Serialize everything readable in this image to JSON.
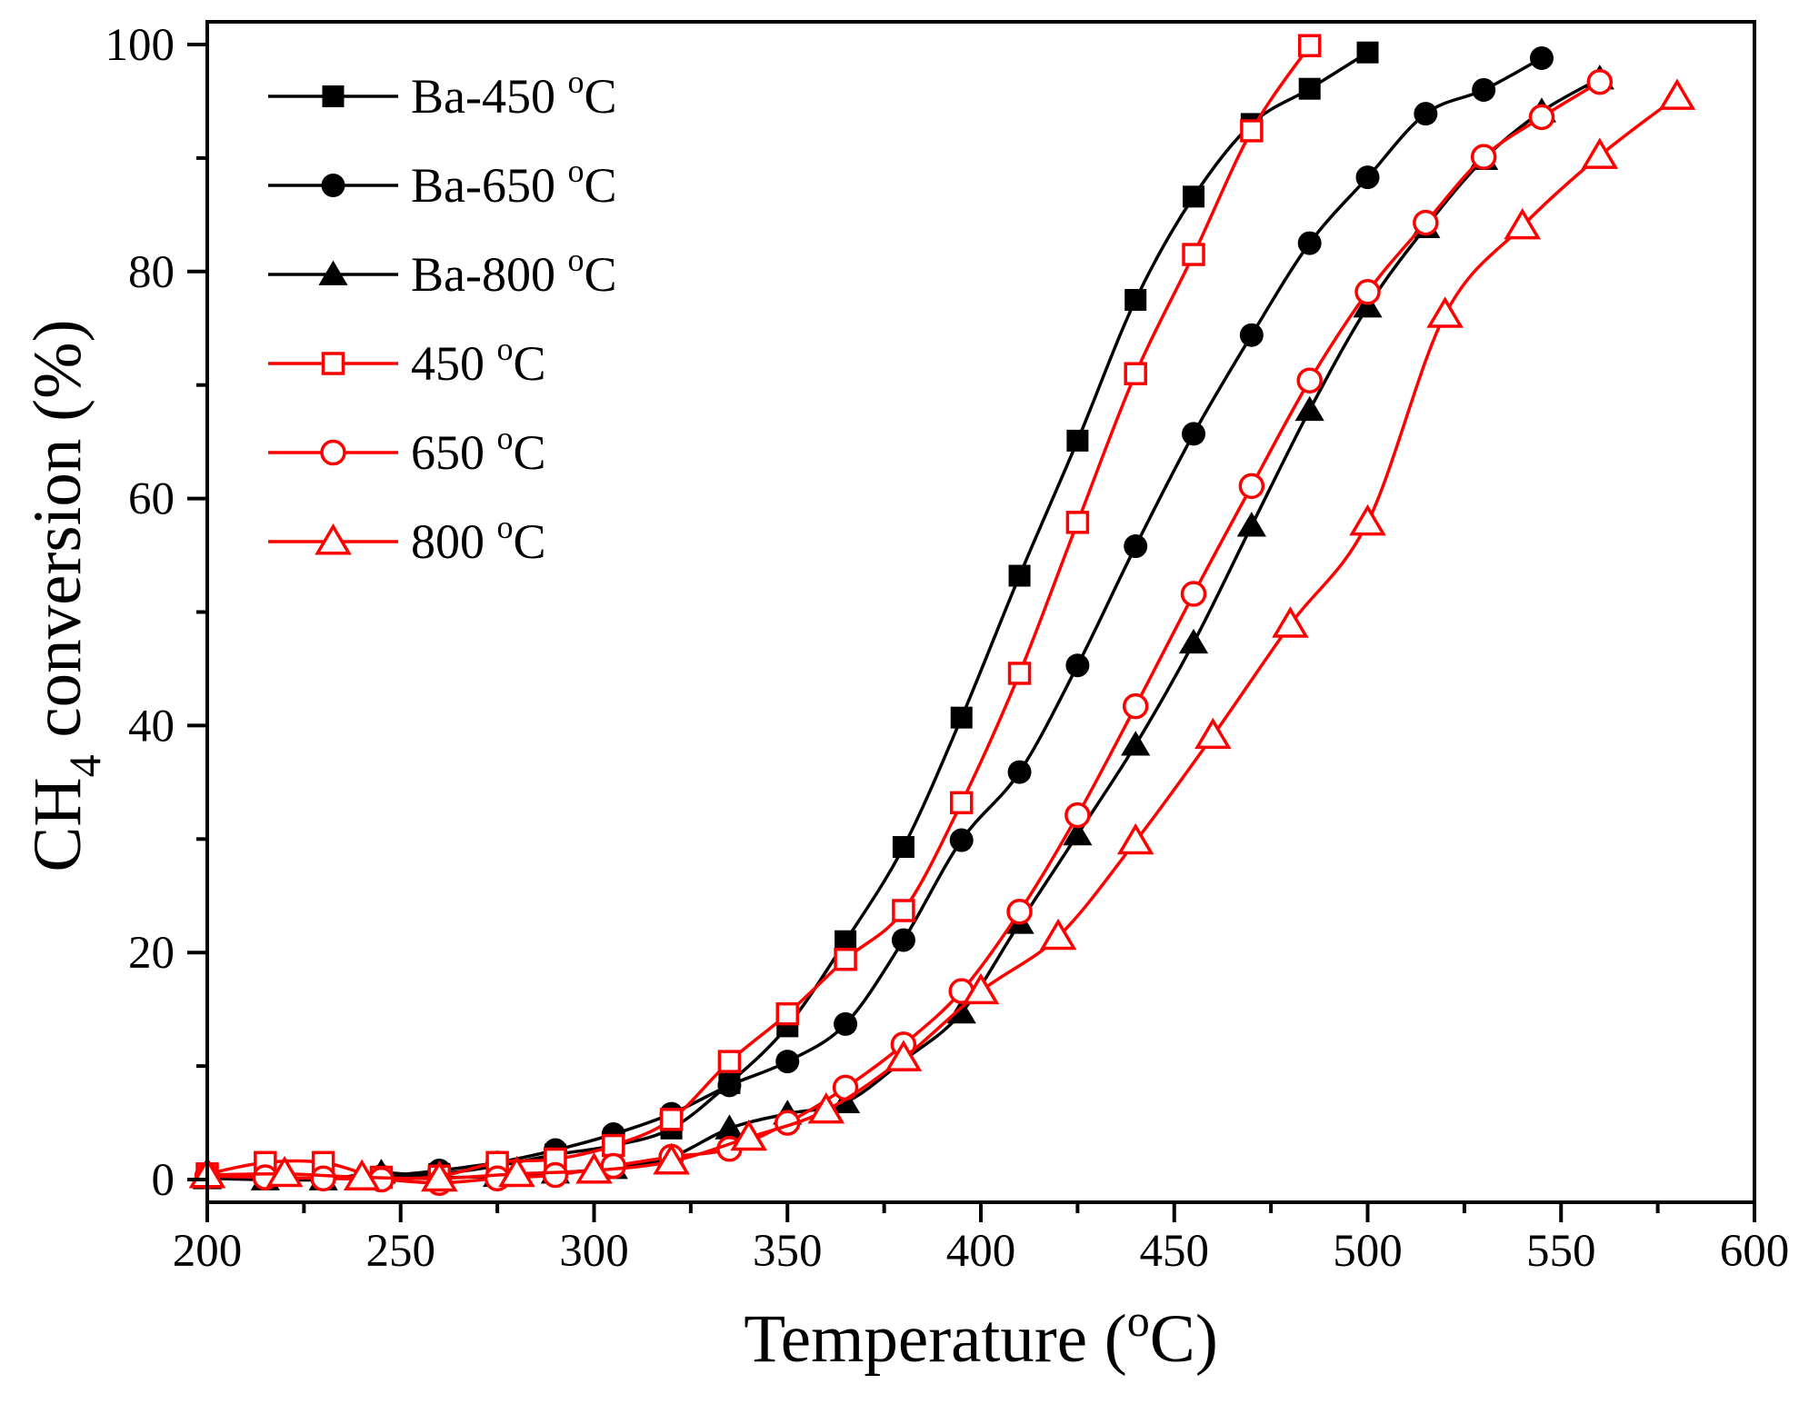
{
  "chart_data": {
    "type": "line",
    "title": "",
    "xlabel": "Temperature (°C)",
    "xlabel_parts": {
      "before": "Temperature (",
      "sup": "o",
      "after": "C)"
    },
    "ylabel": "CH4 conversion (%)",
    "ylabel_parts": {
      "before": "CH",
      "sub": "4",
      "after": " conversion (%)"
    },
    "xlim": [
      200,
      600
    ],
    "ylim": [
      -2,
      102
    ],
    "xticks": [
      200,
      250,
      300,
      350,
      400,
      450,
      500,
      550,
      600
    ],
    "yticks": [
      0,
      20,
      40,
      60,
      80,
      100
    ],
    "grid": false,
    "legend_position": "top-left",
    "series": [
      {
        "name": "Ba-450 °C",
        "label_parts": {
          "before": "Ba-450 ",
          "sup": "o",
          "after": "C"
        },
        "color": "#000000",
        "marker": "square",
        "filled": true,
        "x": [
          200,
          215,
          230,
          245,
          260,
          275,
          290,
          305,
          320,
          335,
          350,
          365,
          380,
          395,
          410,
          425,
          440,
          455,
          470,
          485,
          500
        ],
        "y": [
          0.3,
          0.2,
          0.1,
          0.2,
          0.5,
          1.2,
          2.2,
          3.0,
          4.5,
          8.5,
          13.5,
          21.0,
          29.3,
          40.7,
          53.2,
          65.1,
          77.5,
          86.6,
          93.0,
          96.1,
          99.3
        ]
      },
      {
        "name": "Ba-650 °C",
        "label_parts": {
          "before": "Ba-650 ",
          "sup": "o",
          "after": "C"
        },
        "color": "#000000",
        "marker": "circle",
        "filled": true,
        "x": [
          200,
          215,
          230,
          245,
          260,
          275,
          290,
          305,
          320,
          335,
          350,
          365,
          380,
          395,
          410,
          425,
          440,
          455,
          470,
          485,
          500,
          515,
          530,
          545
        ],
        "y": [
          0.2,
          0.1,
          0.1,
          0.3,
          0.8,
          1.5,
          2.6,
          4.0,
          5.8,
          8.3,
          10.4,
          13.7,
          21.1,
          29.9,
          35.9,
          45.3,
          55.8,
          65.7,
          74.4,
          82.5,
          88.3,
          93.9,
          96.0,
          98.8
        ]
      },
      {
        "name": "Ba-800 °C",
        "label_parts": {
          "before": "Ba-800 ",
          "sup": "o",
          "after": "C"
        },
        "color": "#000000",
        "marker": "triangle",
        "filled": true,
        "x": [
          200,
          215,
          230,
          245,
          260,
          275,
          290,
          305,
          320,
          335,
          350,
          365,
          380,
          395,
          410,
          425,
          440,
          455,
          470,
          485,
          500,
          515,
          530,
          545,
          560
        ],
        "y": [
          0.1,
          0.0,
          0.0,
          0.6,
          0.2,
          0.3,
          0.6,
          1.0,
          2.0,
          4.5,
          5.8,
          6.8,
          10.5,
          14.7,
          22.6,
          30.4,
          38.3,
          47.3,
          57.6,
          67.8,
          76.9,
          83.9,
          89.9,
          94.1,
          97.0
        ]
      },
      {
        "name": "450 °C",
        "label_parts": {
          "before": "450 ",
          "sup": "o",
          "after": "C"
        },
        "color": "#ff0000",
        "marker": "square",
        "filled": false,
        "x": [
          200,
          215,
          230,
          245,
          260,
          275,
          290,
          305,
          320,
          335,
          350,
          365,
          380,
          395,
          410,
          425,
          440,
          455,
          470,
          485
        ],
        "y": [
          0.5,
          1.5,
          1.5,
          0.2,
          0.3,
          1.5,
          1.8,
          3.0,
          5.3,
          10.4,
          14.6,
          19.4,
          23.7,
          33.2,
          44.6,
          57.9,
          71.0,
          81.5,
          92.4,
          99.9
        ]
      },
      {
        "name": "650 °C",
        "label_parts": {
          "before": "650 ",
          "sup": "o",
          "after": "C"
        },
        "color": "#ff0000",
        "marker": "circle",
        "filled": false,
        "x": [
          200,
          215,
          230,
          245,
          260,
          275,
          290,
          305,
          320,
          335,
          350,
          365,
          380,
          395,
          410,
          425,
          440,
          455,
          470,
          485,
          500,
          515,
          530,
          545,
          560
        ],
        "y": [
          0.3,
          0.2,
          0.1,
          0.0,
          -0.3,
          0.1,
          0.4,
          1.2,
          2.0,
          2.7,
          5.0,
          8.1,
          11.9,
          16.6,
          23.6,
          32.1,
          41.7,
          51.6,
          61.1,
          70.4,
          78.2,
          84.3,
          90.1,
          93.6,
          96.7
        ]
      },
      {
        "name": "800 °C",
        "label_parts": {
          "before": "800 ",
          "sup": "o",
          "after": "C"
        },
        "color": "#ff0000",
        "marker": "triangle",
        "filled": false,
        "x": [
          200,
          220,
          240,
          260,
          280,
          300,
          320,
          340,
          360,
          380,
          400,
          420,
          440,
          460,
          480,
          500,
          520,
          540,
          560,
          580
        ],
        "y": [
          0.4,
          0.5,
          0.2,
          0.1,
          0.5,
          0.8,
          1.6,
          3.7,
          6.1,
          10.7,
          16.6,
          21.4,
          29.8,
          39.1,
          48.9,
          57.9,
          76.2,
          84.0,
          90.2,
          95.4
        ]
      }
    ]
  }
}
